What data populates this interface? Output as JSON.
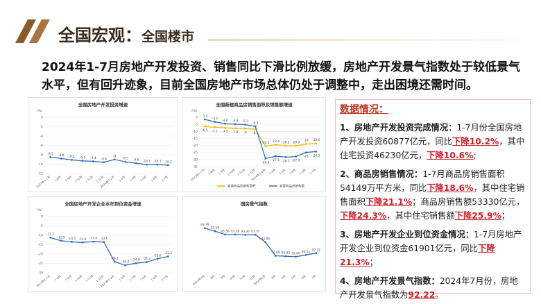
{
  "header": {
    "title": "全国宏观：",
    "subtitle": "全国楼市"
  },
  "summary": "2024年1-7月房地产开发投资、销售同比下滑比例放缓，房地产开发景气指数处于较低景气水平，但有回升迹象，目前全国房地产市场总体仍处于调整中，走出困境还需时间。",
  "chart_data": [
    {
      "type": "line",
      "title": "全国房地产开发投资增速",
      "y_label": "(%)",
      "categories": [
        "2023年1-7月",
        "1-8月",
        "1-9月",
        "1-10月",
        "1-11月",
        "1-12月",
        "2024年1-2月",
        "1-3月",
        "1-4月",
        "1-5月",
        "1-6月",
        "1-7月"
      ],
      "series": [
        {
          "name": null,
          "color": "#2e6fba",
          "values": [
            -8.5,
            -8.8,
            -9.1,
            -9.3,
            -9.4,
            -9.6,
            -9,
            -9.5,
            -9.8,
            -10.1,
            -10.1,
            -10.2
          ]
        }
      ],
      "ylim": [
        -12,
        0
      ],
      "yticks": [
        0,
        -2,
        -4,
        -6,
        -8,
        -10,
        -12
      ],
      "grid": true
    },
    {
      "type": "line",
      "title": "全国新建商品房销售面积及销售额增速",
      "y_label": "(%)",
      "categories": [
        "2023年1-7月",
        "1-8月",
        "1-9月",
        "1-10月",
        "1-11月",
        "1-12月",
        "2024年1-2月",
        "1-3月",
        "1-4月",
        "1-5月",
        "1-6月",
        "1-7月"
      ],
      "series": [
        {
          "name": "新建商品房销售面积",
          "color": "#f5b800",
          "values": [
            -6.5,
            -7.1,
            -7.5,
            -7.8,
            -8,
            -8.5,
            -20.5,
            -19.4,
            -20.2,
            -20.3,
            -19,
            -18.6
          ]
        },
        {
          "name": "新建商品房销售额",
          "color": "#2e6fba",
          "values": [
            -1.5,
            -3.2,
            -4.6,
            -4.9,
            -5.2,
            -6.5,
            -29.3,
            -27.6,
            -28.3,
            -27.9,
            -25,
            -24.3
          ]
        }
      ],
      "ylim": [
        -35,
        0
      ],
      "yticks": [
        0,
        -5,
        -10,
        -15,
        -20,
        -25,
        -30,
        -35
      ],
      "grid": true,
      "legend": "bottom"
    },
    {
      "type": "line",
      "title": "全国房地产开发企业本年到位资金增速",
      "y_label": "(%)",
      "categories": [
        "2023年1-7月",
        "1-8月",
        "1-9月",
        "1-10月",
        "1-11月",
        "1-12月",
        "2024年1-2月",
        "1-3月",
        "1-4月",
        "1-5月",
        "1-6月",
        "1-7月"
      ],
      "series": [
        {
          "name": null,
          "color": "#2e6fba",
          "values": [
            -11.2,
            -12.9,
            -13.5,
            -13.8,
            -13.4,
            -13.6,
            -24.1,
            -26,
            -24.9,
            -24.3,
            -22.6,
            -21.3
          ],
          "value_labels": [
            "-11.2",
            "-12.9",
            "-13.5",
            "-13.8",
            "-13.4",
            "-13.6",
            "-24.1",
            "-26.0",
            "-24.9",
            "-24.3",
            "-22.6",
            "-21.3"
          ]
        }
      ],
      "ylim": [
        -30,
        0
      ],
      "yticks": [
        0,
        -5,
        -10,
        -15,
        -20,
        -25,
        -30
      ],
      "grid": true
    },
    {
      "type": "line",
      "title": "国房景气指数",
      "categories": [
        "2023年7月",
        "8月",
        "9月",
        "10月",
        "11月",
        "12月",
        "2024年2月",
        "3月",
        "4月",
        "5月",
        "6月",
        "7月"
      ],
      "series": [
        {
          "name": null,
          "color": "#2e6fba",
          "values": [
            93.78,
            93.59,
            93.38,
            93.38,
            93.36,
            93.37,
            92.9,
            92.06,
            92.03,
            92,
            92.11,
            92.22
          ],
          "value_labels": [
            "93.78",
            "93.59",
            "93.38",
            "93.38",
            "93.36",
            "93.37",
            "92.90",
            "92.06",
            "92.03",
            "92.00",
            "92.11",
            "92.22"
          ]
        }
      ],
      "ylim": [
        91,
        94.5
      ],
      "grid": false
    }
  ],
  "panel": {
    "heading": "数据情况：",
    "items": [
      {
        "title": "1、房地产开发投资完成情况：",
        "runs": [
          {
            "text": "1-7月份全国房地产开发投资60877亿元，同比"
          },
          {
            "text": "下降10.2%",
            "emphasis": true
          },
          {
            "text": "，其中住宅投资46230亿元，"
          },
          {
            "text": "下降10.6%",
            "emphasis": true
          },
          {
            "text": ";"
          }
        ]
      },
      {
        "title": "2、商品房销售情况：",
        "runs": [
          {
            "text": "1-7月商品房销售面积54149万平方米，同比"
          },
          {
            "text": "下降18.6%",
            "emphasis": true
          },
          {
            "text": "，其中住宅销售面积"
          },
          {
            "text": "下降21.1%",
            "emphasis": true
          },
          {
            "text": "；商品房销售额53330亿元，"
          },
          {
            "text": "下降24.3%",
            "emphasis": true
          },
          {
            "text": "，其中住宅销售额"
          },
          {
            "text": "下降25.9%",
            "emphasis": true
          },
          {
            "text": "；"
          }
        ]
      },
      {
        "title": "3、房地产开发企业到位资金情况：",
        "runs": [
          {
            "text": "1-7月房地产开发企业到位资金61901亿元，同比"
          },
          {
            "text": "下降21.3%",
            "emphasis": true
          },
          {
            "text": "；"
          }
        ]
      },
      {
        "title": "4、房地产开发景气指数：",
        "runs": [
          {
            "text": "2024年7月份，房地产开发景气指数为"
          },
          {
            "text": "92.22",
            "emphasis": true
          },
          {
            "text": "。"
          }
        ]
      }
    ]
  }
}
